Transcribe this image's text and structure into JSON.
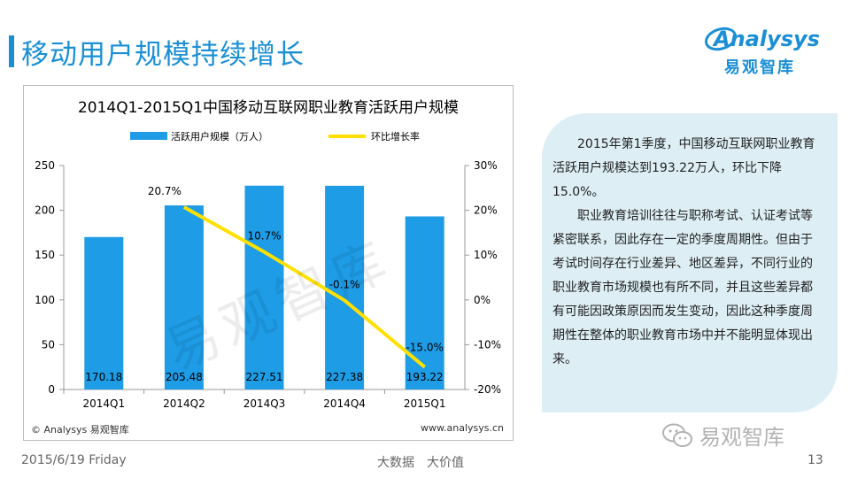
{
  "page": {
    "title": "移动用户规模持续增长",
    "footer_date": "2015/6/19 Friday",
    "footer_center": "大数据　大价值",
    "page_number": "13"
  },
  "logo": {
    "word": "Analysys",
    "cn": "易观智库"
  },
  "watermark": {
    "chart": "易观智库",
    "wechat": "易观智库"
  },
  "source": {
    "left": "© Analysys 易观智库",
    "right": "www.analysys.cn"
  },
  "note": {
    "paragraphs": [
      "2015年第1季度，中国移动互联网职业教育活跃用户规模达到193.22万人，环比下降15.0%。",
      "职业教育培训往往与职称考试、认证考试等紧密联系，因此存在一定的季度周期性。但由于考试时间存在行业差异、地区差异，不同行业的职业教育市场规模也有所不同，并且这些差异都有可能因政策原因而发生变动，因此这种季度周期性在整体的职业教育市场中并不能明显体现出来。"
    ]
  },
  "colors": {
    "accent": "#1a8fd6",
    "bar": "#1e9ce6",
    "line": "#ffe000",
    "note_bg": "#ddeff5"
  },
  "chart_data": {
    "type": "bar",
    "title": "2014Q1-2015Q1中国移动互联网职业教育活跃用户规模",
    "categories": [
      "2014Q1",
      "2014Q2",
      "2014Q3",
      "2014Q4",
      "2015Q1"
    ],
    "series": [
      {
        "name": "活跃用户规模（万人）",
        "type": "bar",
        "axis": "left",
        "values": [
          170.18,
          205.48,
          227.51,
          227.38,
          193.22
        ],
        "labels": [
          "170.18",
          "205.48",
          "227.51",
          "227.38",
          "193.22"
        ]
      },
      {
        "name": "环比增长率",
        "type": "line",
        "axis": "right",
        "values": [
          null,
          20.7,
          10.7,
          -0.1,
          -15.0
        ],
        "labels": [
          "",
          "20.7%",
          "10.7%",
          "-0.1%",
          "-15.0%"
        ]
      }
    ],
    "y_left": {
      "min": 0,
      "max": 250,
      "ticks": [
        0,
        50,
        100,
        150,
        200,
        250
      ]
    },
    "y_right": {
      "min": -20,
      "max": 30,
      "ticks": [
        "-20%",
        "-10%",
        "0%",
        "10%",
        "20%",
        "30%"
      ],
      "tick_values": [
        -20,
        -10,
        0,
        10,
        20,
        30
      ]
    },
    "legend_position": "top"
  }
}
